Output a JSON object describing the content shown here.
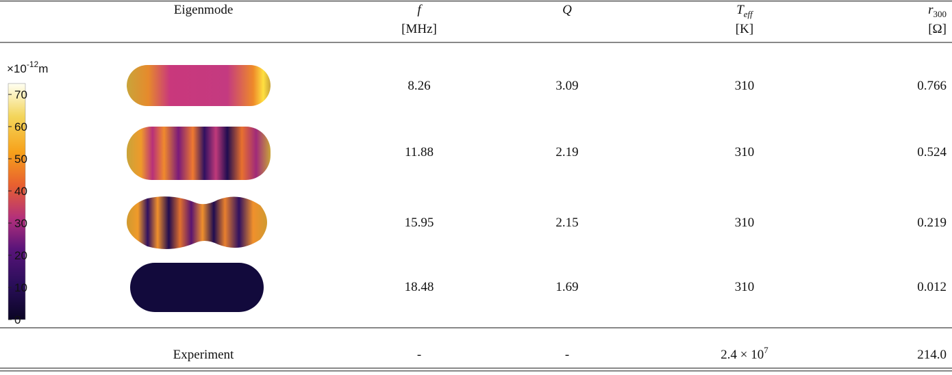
{
  "colorbar": {
    "unit_prefix": "×10",
    "unit_exponent": "-12",
    "unit": "m",
    "range": [
      0,
      70
    ],
    "ticks": [
      0,
      10,
      20,
      30,
      40,
      50,
      60,
      70
    ]
  },
  "table": {
    "header": [
      {
        "symbol": "Eigenmode"
      },
      {
        "symbol": "f",
        "unit": "[MHz]"
      },
      {
        "symbol": "Q"
      },
      {
        "symbol": "T",
        "subscript": "eff",
        "unit": "[K]"
      },
      {
        "symbol": "r",
        "subscript": "300",
        "unit": "[Ω]"
      }
    ],
    "rows": [
      [
        "8.26",
        "3.09",
        "310",
        "0.766"
      ],
      [
        "11.88",
        "2.19",
        "310",
        "0.524"
      ],
      [
        "15.95",
        "2.15",
        "310",
        "0.219"
      ],
      [
        "18.48",
        "1.69",
        "310",
        "0.012"
      ]
    ],
    "experiment": {
      "label": "Experiment",
      "cells": [
        "-",
        "-",
        {
          "mantissa": "2.4 × 10",
          "exponent": "7"
        },
        "214.0"
      ]
    }
  }
}
